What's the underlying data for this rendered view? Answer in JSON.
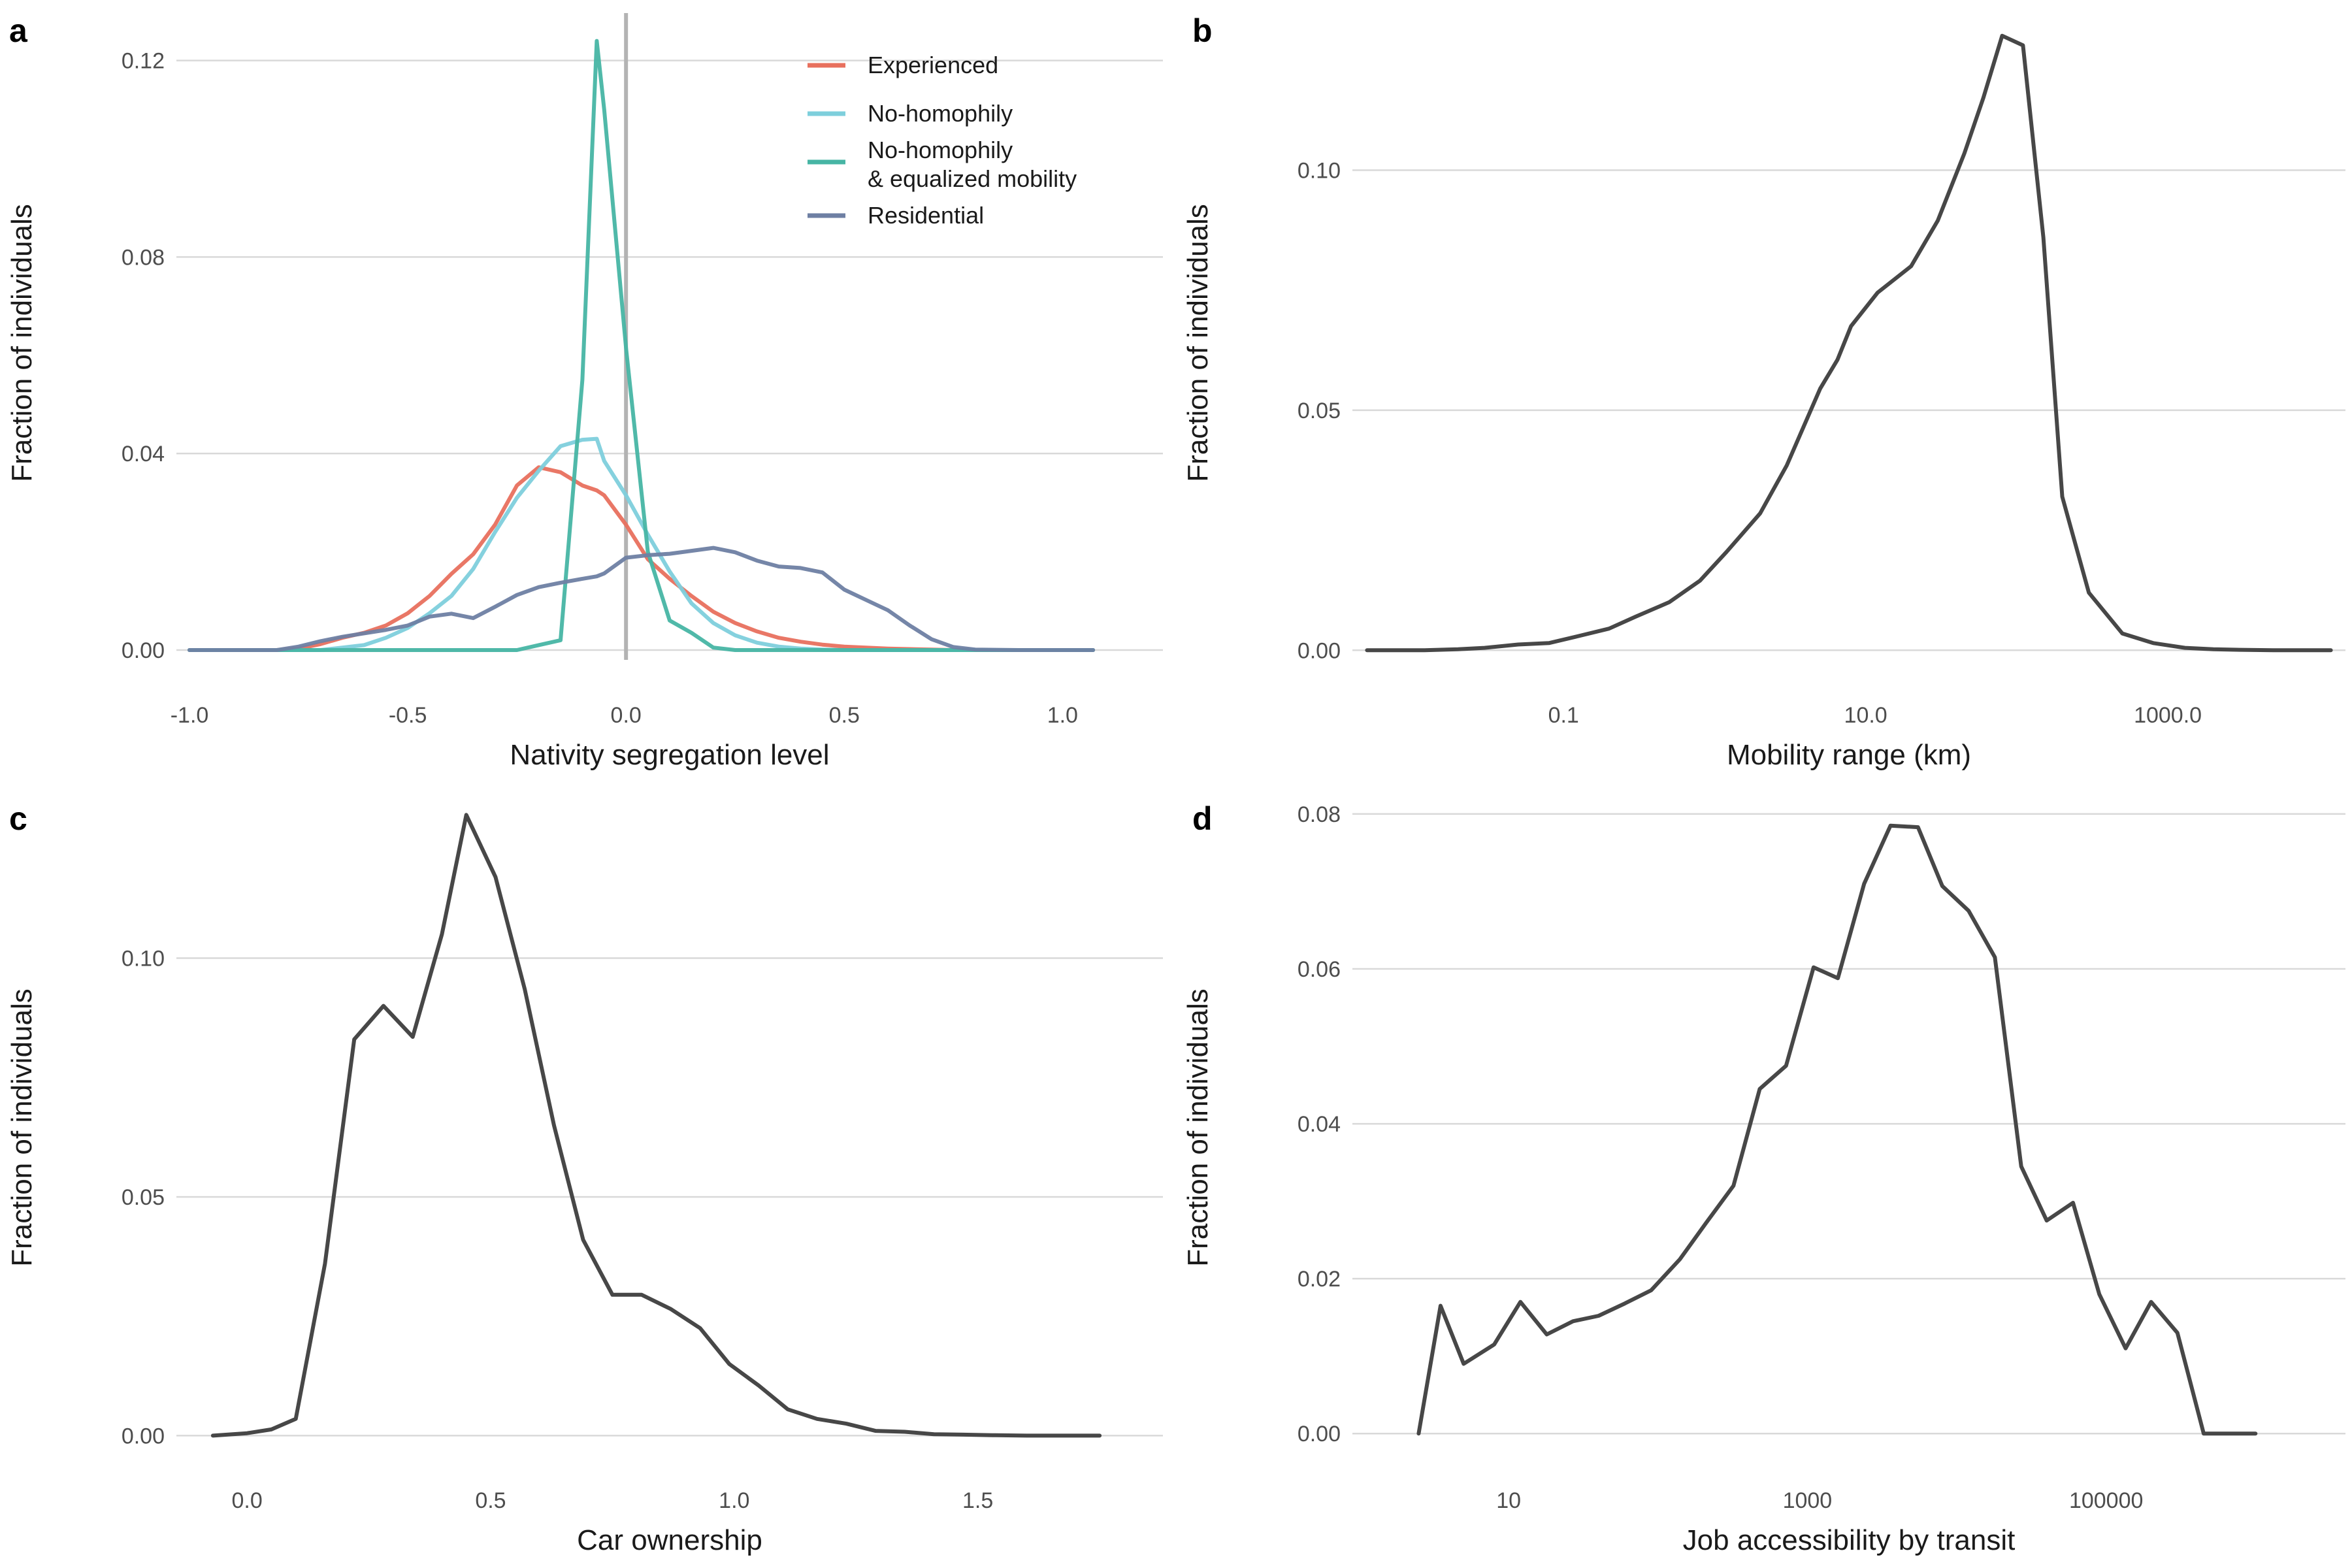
{
  "chart_data": [
    {
      "panel": "a",
      "type": "line",
      "xlabel": "Nativity segregation level",
      "ylabel": "Fraction of individuals",
      "xscale": "linear",
      "xlim": [
        -1.03,
        1.23
      ],
      "ylim": [
        -0.002,
        0.127
      ],
      "xticks": [
        -1.0,
        -0.5,
        0.0,
        0.5,
        1.0
      ],
      "xtick_labels": [
        "-1.0",
        "-0.5",
        "0.0",
        "0.5",
        "1.0"
      ],
      "yticks": [
        0.0,
        0.04,
        0.08,
        0.12
      ],
      "ytick_labels": [
        "0.00",
        "0.04",
        "0.08",
        "0.12"
      ],
      "vline": 0.0,
      "vline_color": "#b3b3b3",
      "grid": "horizontal",
      "legend_position": "top-right",
      "x": [
        -1.0,
        -0.9,
        -0.8,
        -0.75,
        -0.7,
        -0.65,
        -0.6,
        -0.55,
        -0.5,
        -0.45,
        -0.4,
        -0.35,
        -0.3,
        -0.25,
        -0.2,
        -0.15,
        -0.1,
        -0.067,
        -0.05,
        0.0,
        0.05,
        0.1,
        0.15,
        0.2,
        0.25,
        0.3,
        0.35,
        0.4,
        0.45,
        0.5,
        0.55,
        0.6,
        0.65,
        0.7,
        0.75,
        0.8,
        0.9,
        1.0,
        1.07
      ],
      "series": [
        {
          "name": "Experienced",
          "color": "#e8705e",
          "values": [
            0,
            0,
            0,
            0.0003,
            0.0012,
            0.0025,
            0.0035,
            0.005,
            0.0075,
            0.011,
            0.0155,
            0.0195,
            0.0255,
            0.0335,
            0.0372,
            0.0362,
            0.0335,
            0.0325,
            0.0315,
            0.0255,
            0.0185,
            0.0145,
            0.011,
            0.0078,
            0.0055,
            0.0038,
            0.0025,
            0.0017,
            0.0011,
            0.0007,
            0.0005,
            0.0003,
            0.0002,
            0.0001,
            0,
            0,
            0,
            0,
            0
          ]
        },
        {
          "name": "No-homophily",
          "color": "#7ecfdc",
          "values": [
            0,
            0,
            0,
            0,
            0,
            0.0005,
            0.001,
            0.0025,
            0.0045,
            0.0075,
            0.011,
            0.0165,
            0.024,
            0.031,
            0.0365,
            0.0415,
            0.0428,
            0.043,
            0.0385,
            0.0315,
            0.0235,
            0.016,
            0.0095,
            0.0055,
            0.003,
            0.0015,
            0.0007,
            0.0003,
            0.0001,
            0,
            0,
            0,
            0,
            0,
            0,
            0,
            0,
            0,
            0
          ]
        },
        {
          "name": "No-homophily\n& equalized mobility",
          "color": "#47b5a4",
          "values": [
            0,
            0,
            0,
            0,
            0,
            0,
            0,
            0,
            0,
            0,
            0,
            0,
            0,
            0,
            0.001,
            0.002,
            0.055,
            0.124,
            0.11,
            0.0615,
            0.02,
            0.006,
            0.0035,
            0.0005,
            0,
            0,
            0,
            0,
            0,
            0,
            0,
            0,
            0,
            0,
            0,
            0,
            0,
            0,
            0
          ]
        },
        {
          "name": "Residential",
          "color": "#6e7fa3",
          "values": [
            0,
            0,
            0,
            0.0007,
            0.0018,
            0.0027,
            0.0034,
            0.0041,
            0.005,
            0.0068,
            0.0074,
            0.0065,
            0.0088,
            0.0112,
            0.0128,
            0.0137,
            0.0145,
            0.015,
            0.0156,
            0.0188,
            0.0193,
            0.0196,
            0.0202,
            0.0208,
            0.0199,
            0.0182,
            0.017,
            0.0167,
            0.0158,
            0.0123,
            0.0102,
            0.0081,
            0.005,
            0.0022,
            0.0006,
            0.0001,
            0,
            0,
            0
          ]
        }
      ]
    },
    {
      "panel": "b",
      "type": "line",
      "xlabel": "Mobility range (km)",
      "ylabel": "Fraction of individuals",
      "xscale": "log10",
      "xlim": [
        0.004,
        15000
      ],
      "ylim": [
        -0.002,
        0.13
      ],
      "xticks": [
        0.1,
        10,
        1000
      ],
      "xtick_labels": [
        "0.1",
        "10.0",
        "1000.0"
      ],
      "yticks": [
        0.0,
        0.05,
        0.1
      ],
      "ytick_labels": [
        "0.00",
        "0.05",
        "0.10"
      ],
      "grid": "horizontal",
      "color": "#474747",
      "x": [
        0.005,
        0.008,
        0.012,
        0.02,
        0.03,
        0.05,
        0.08,
        0.12,
        0.2,
        0.3,
        0.5,
        0.8,
        1.2,
        2.0,
        3.0,
        5.0,
        6.5,
        8.0,
        12,
        20,
        30,
        45,
        60,
        80,
        110,
        150,
        200,
        300,
        500,
        800,
        1300,
        2000,
        3000,
        5000,
        8000,
        12000
      ],
      "values": [
        0,
        0,
        0,
        0.0002,
        0.0005,
        0.0012,
        0.0015,
        0.0028,
        0.0045,
        0.007,
        0.01,
        0.0145,
        0.0205,
        0.0285,
        0.0385,
        0.0545,
        0.0605,
        0.0675,
        0.0745,
        0.08,
        0.0895,
        0.1035,
        0.115,
        0.128,
        0.126,
        0.086,
        0.032,
        0.012,
        0.0035,
        0.0015,
        0.0005,
        0.0002,
        0.0001,
        0,
        0,
        0
      ]
    },
    {
      "panel": "c",
      "type": "line",
      "xlabel": "Car ownership",
      "ylabel": "Fraction of individuals",
      "xscale": "linear",
      "xlim": [
        -0.145,
        1.88
      ],
      "ylim": [
        -0.002,
        0.131
      ],
      "xticks": [
        0.0,
        0.5,
        1.0,
        1.5
      ],
      "xtick_labels": [
        "0.0",
        "0.5",
        "1.0",
        "1.5"
      ],
      "yticks": [
        0.0,
        0.05,
        0.1
      ],
      "ytick_labels": [
        "0.00",
        "0.05",
        "0.10"
      ],
      "grid": "horizontal",
      "color": "#474747",
      "x": [
        -0.07,
        0.0,
        0.05,
        0.1,
        0.16,
        0.22,
        0.28,
        0.34,
        0.4,
        0.45,
        0.51,
        0.57,
        0.63,
        0.69,
        0.75,
        0.81,
        0.87,
        0.93,
        0.99,
        1.05,
        1.11,
        1.17,
        1.23,
        1.29,
        1.35,
        1.41,
        1.47,
        1.53,
        1.6,
        1.67,
        1.75
      ],
      "values": [
        0,
        0.0005,
        0.0013,
        0.0035,
        0.036,
        0.083,
        0.09,
        0.0835,
        0.105,
        0.13,
        0.117,
        0.0935,
        0.065,
        0.041,
        0.0295,
        0.0295,
        0.0265,
        0.0225,
        0.015,
        0.0105,
        0.0055,
        0.0035,
        0.0025,
        0.001,
        0.0008,
        0.0003,
        0.0002,
        0.0001,
        0,
        0,
        0
      ]
    },
    {
      "panel": "d",
      "type": "line",
      "xlabel": "Job accessibility by transit",
      "ylabel": "Fraction of individuals",
      "xscale": "log10",
      "xlim": [
        0.9,
        4000000
      ],
      "ylim": [
        -0.0015,
        0.0805
      ],
      "xticks": [
        10,
        1000,
        100000
      ],
      "xtick_labels": [
        "10",
        "1000",
        "100000"
      ],
      "yticks": [
        0.0,
        0.02,
        0.04,
        0.06,
        0.08
      ],
      "ytick_labels": [
        "0.00",
        "0.02",
        "0.04",
        "0.06",
        "0.08"
      ],
      "grid": "horizontal",
      "color": "#474747",
      "x": [
        2.5,
        3.5,
        5,
        8,
        12,
        18,
        27,
        40,
        60,
        90,
        140,
        210,
        320,
        480,
        720,
        1100,
        1600,
        2400,
        3600,
        5500,
        8000,
        12000,
        18000,
        27000,
        40000,
        60000,
        90000,
        135000,
        200000,
        300000,
        450000,
        700000,
        1000000
      ],
      "values": [
        0,
        0.0165,
        0.009,
        0.0115,
        0.017,
        0.0128,
        0.0145,
        0.0152,
        0.0168,
        0.0185,
        0.0225,
        0.0272,
        0.032,
        0.0445,
        0.0475,
        0.0602,
        0.0588,
        0.071,
        0.0785,
        0.0783,
        0.0707,
        0.0675,
        0.0615,
        0.0345,
        0.0275,
        0.0298,
        0.018,
        0.011,
        0.017,
        0.013,
        0.0,
        0.0,
        0.0
      ]
    }
  ]
}
